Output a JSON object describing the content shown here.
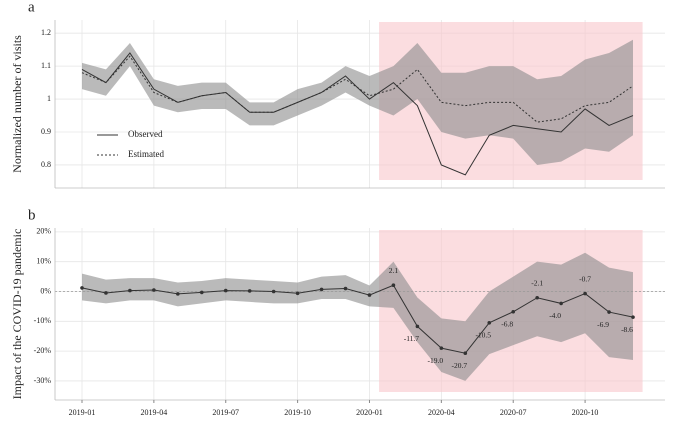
{
  "chart_data": [
    {
      "type": "line",
      "panel_label": "a",
      "ylabel": "Normalized number of visits",
      "x": [
        "2019-01",
        "2019-02",
        "2019-03",
        "2019-04",
        "2019-05",
        "2019-06",
        "2019-07",
        "2019-08",
        "2019-09",
        "2019-10",
        "2019-11",
        "2019-12",
        "2020-01",
        "2020-02",
        "2020-03",
        "2020-04",
        "2020-05",
        "2020-06",
        "2020-07",
        "2020-08",
        "2020-09",
        "2020-10",
        "2020-11",
        "2020-12"
      ],
      "series": [
        {
          "name": "Observed",
          "color": "#333333",
          "dashed": false,
          "values": [
            1.09,
            1.05,
            1.14,
            1.03,
            0.99,
            1.01,
            1.02,
            0.96,
            0.96,
            0.99,
            1.02,
            1.07,
            1.0,
            1.05,
            0.98,
            0.8,
            0.77,
            0.89,
            0.92,
            0.91,
            0.9,
            0.97,
            0.92,
            0.95
          ]
        },
        {
          "name": "Estimated",
          "color": "#333333",
          "dashed": true,
          "values": [
            1.08,
            1.05,
            1.13,
            1.02,
            0.99,
            1.01,
            1.02,
            0.96,
            0.96,
            0.99,
            1.02,
            1.06,
            1.01,
            1.03,
            1.09,
            0.99,
            0.98,
            0.99,
            0.99,
            0.93,
            0.94,
            0.98,
            0.99,
            1.04
          ]
        }
      ],
      "band": {
        "color": "#8c8c8c",
        "upper": [
          1.11,
          1.09,
          1.17,
          1.06,
          1.04,
          1.05,
          1.05,
          0.99,
          0.99,
          1.03,
          1.05,
          1.1,
          1.07,
          1.1,
          1.17,
          1.08,
          1.08,
          1.1,
          1.1,
          1.06,
          1.07,
          1.12,
          1.14,
          1.18
        ],
        "lower": [
          1.03,
          1.01,
          1.1,
          0.98,
          0.96,
          0.97,
          0.97,
          0.92,
          0.92,
          0.95,
          0.98,
          1.02,
          0.98,
          0.95,
          1.0,
          0.9,
          0.88,
          0.89,
          0.88,
          0.8,
          0.81,
          0.85,
          0.84,
          0.89
        ]
      },
      "highlight": {
        "from": "2020-01",
        "to": "2020-12",
        "color": "#f9c6cc"
      },
      "ylim": [
        0.73,
        1.24
      ],
      "yticks": [
        0.8,
        0.9,
        1.0,
        1.1,
        1.2
      ],
      "grid": true,
      "legend": "lower left"
    },
    {
      "type": "line",
      "panel_label": "b",
      "ylabel": "Impact of the COVID-19 pandemic",
      "x": [
        "2019-01",
        "2019-02",
        "2019-03",
        "2019-04",
        "2019-05",
        "2019-06",
        "2019-07",
        "2019-08",
        "2019-09",
        "2019-10",
        "2019-11",
        "2019-12",
        "2020-01",
        "2020-02",
        "2020-03",
        "2020-04",
        "2020-05",
        "2020-06",
        "2020-07",
        "2020-08",
        "2020-09",
        "2020-10",
        "2020-11",
        "2020-12"
      ],
      "values": [
        1.2,
        -0.5,
        0.3,
        0.5,
        -0.8,
        -0.3,
        0.3,
        0.2,
        0,
        -0.6,
        0.7,
        1.0,
        -1.2,
        2.1,
        -11.7,
        -19.0,
        -20.7,
        -10.5,
        -6.8,
        -2.1,
        -4.0,
        -0.7,
        -6.9,
        -8.6
      ],
      "value_labels": [
        null,
        null,
        null,
        null,
        null,
        null,
        null,
        null,
        null,
        null,
        null,
        null,
        null,
        "2.1",
        "-11.7",
        "-19.0",
        "-20.7",
        "-10.5",
        "-6.8",
        "-2.1",
        "-4.0",
        "-0.7",
        "-6.9",
        "-8.6"
      ],
      "color": "#333333",
      "band": {
        "color": "#8c8c8c",
        "upper": [
          6,
          4,
          4.5,
          4.5,
          3,
          3.5,
          4.5,
          4,
          3.5,
          3,
          5,
          5.5,
          2,
          10,
          -2,
          -9,
          -10,
          0,
          5,
          10,
          9,
          13,
          8,
          6.5
        ],
        "lower": [
          -3,
          -4,
          -3,
          -3,
          -5,
          -4,
          -3,
          -3.5,
          -4,
          -4,
          -2.5,
          -2.5,
          -5,
          -5.5,
          -17,
          -27,
          -30,
          -21,
          -18,
          -15,
          -17,
          -14,
          -22,
          -23
        ]
      },
      "highlight": {
        "from": "2020-01",
        "to": "2020-12",
        "color": "#f9c6cc"
      },
      "reference_line": 0,
      "ylim": [
        -36.4,
        21.3
      ],
      "yticks": [
        {
          "value": -30,
          "label": "-30%"
        },
        {
          "value": -20,
          "label": "-20%"
        },
        {
          "value": -10,
          "label": "-10%"
        },
        {
          "value": 0,
          "label": "0%"
        },
        {
          "value": 10,
          "label": "10%"
        },
        {
          "value": 20,
          "label": "20%"
        }
      ],
      "xticks": [
        "2019-01",
        "2019-04",
        "2019-07",
        "2019-10",
        "2020-01",
        "2020-04",
        "2020-07",
        "2020-10"
      ],
      "grid": true
    }
  ]
}
